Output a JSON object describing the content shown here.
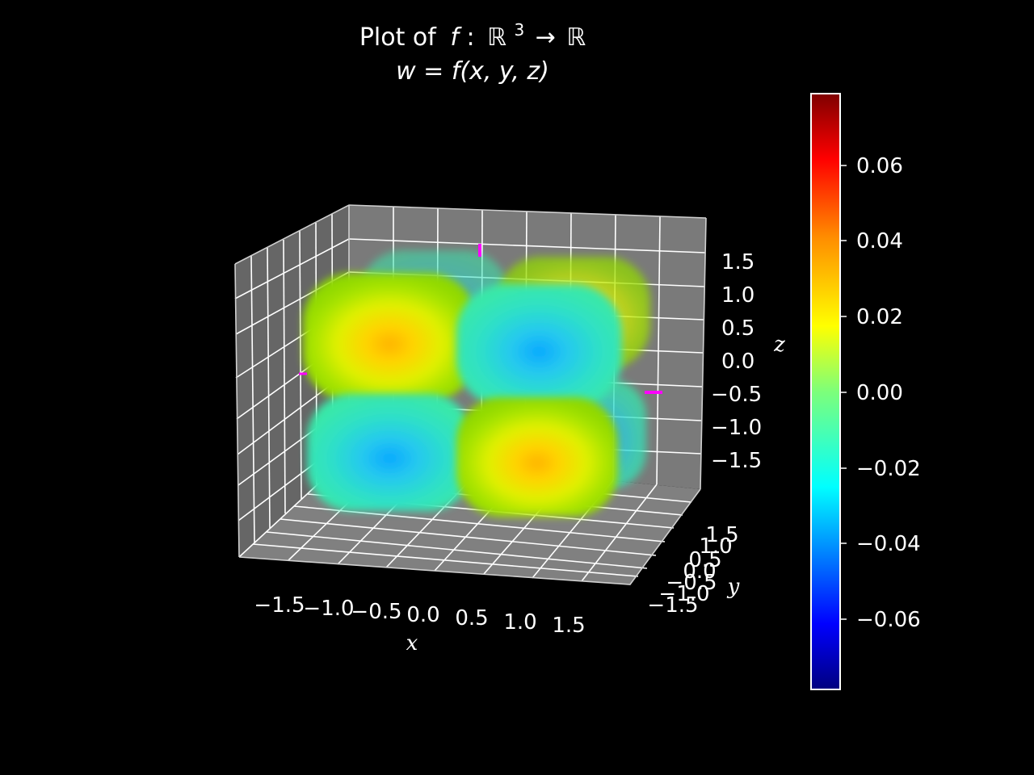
{
  "chart_data": {
    "type": "volume-3d",
    "title": {
      "line1_prefix": "Plot of",
      "line1_func": "f",
      "line1_colon": ":",
      "line1_domain": "ℝ",
      "line1_exp": "3",
      "line1_arrow": "→",
      "line1_codomain": "ℝ",
      "line2": "w = f(x, y, z)"
    },
    "xlabel": "x",
    "ylabel": "y",
    "zlabel": "z",
    "x_ticks": [
      "−1.5",
      "−1.0",
      "−0.5",
      "0.0",
      "0.5",
      "1.0",
      "1.5"
    ],
    "y_ticks": [
      "−1.5",
      "−1.0",
      "−0.5",
      "0.0",
      "0.5",
      "1.0",
      "1.5"
    ],
    "z_ticks": [
      "1.5",
      "1.0",
      "0.5",
      "0.0",
      "−0.5",
      "−1.0",
      "−1.5"
    ],
    "xlim": [
      -2,
      2
    ],
    "ylim": [
      -2,
      2
    ],
    "zlim": [
      -2,
      2
    ],
    "colorbar": {
      "colormap": "jet",
      "range": [
        -0.078,
        0.078
      ],
      "ticks": [
        "0.06",
        "0.04",
        "0.02",
        "0.00",
        "−0.02",
        "−0.04",
        "−0.06"
      ]
    },
    "lobes": [
      {
        "octant": "x-,z+",
        "sign": "positive",
        "peak": 0.03
      },
      {
        "octant": "x+,z+",
        "sign": "negative",
        "peak": -0.03
      },
      {
        "octant": "x-,z-",
        "sign": "negative",
        "peak": -0.03
      },
      {
        "octant": "x+,z-",
        "sign": "positive",
        "peak": 0.03
      }
    ],
    "grid": true,
    "background": "#000000",
    "pane_color": "#7a7a7a"
  }
}
